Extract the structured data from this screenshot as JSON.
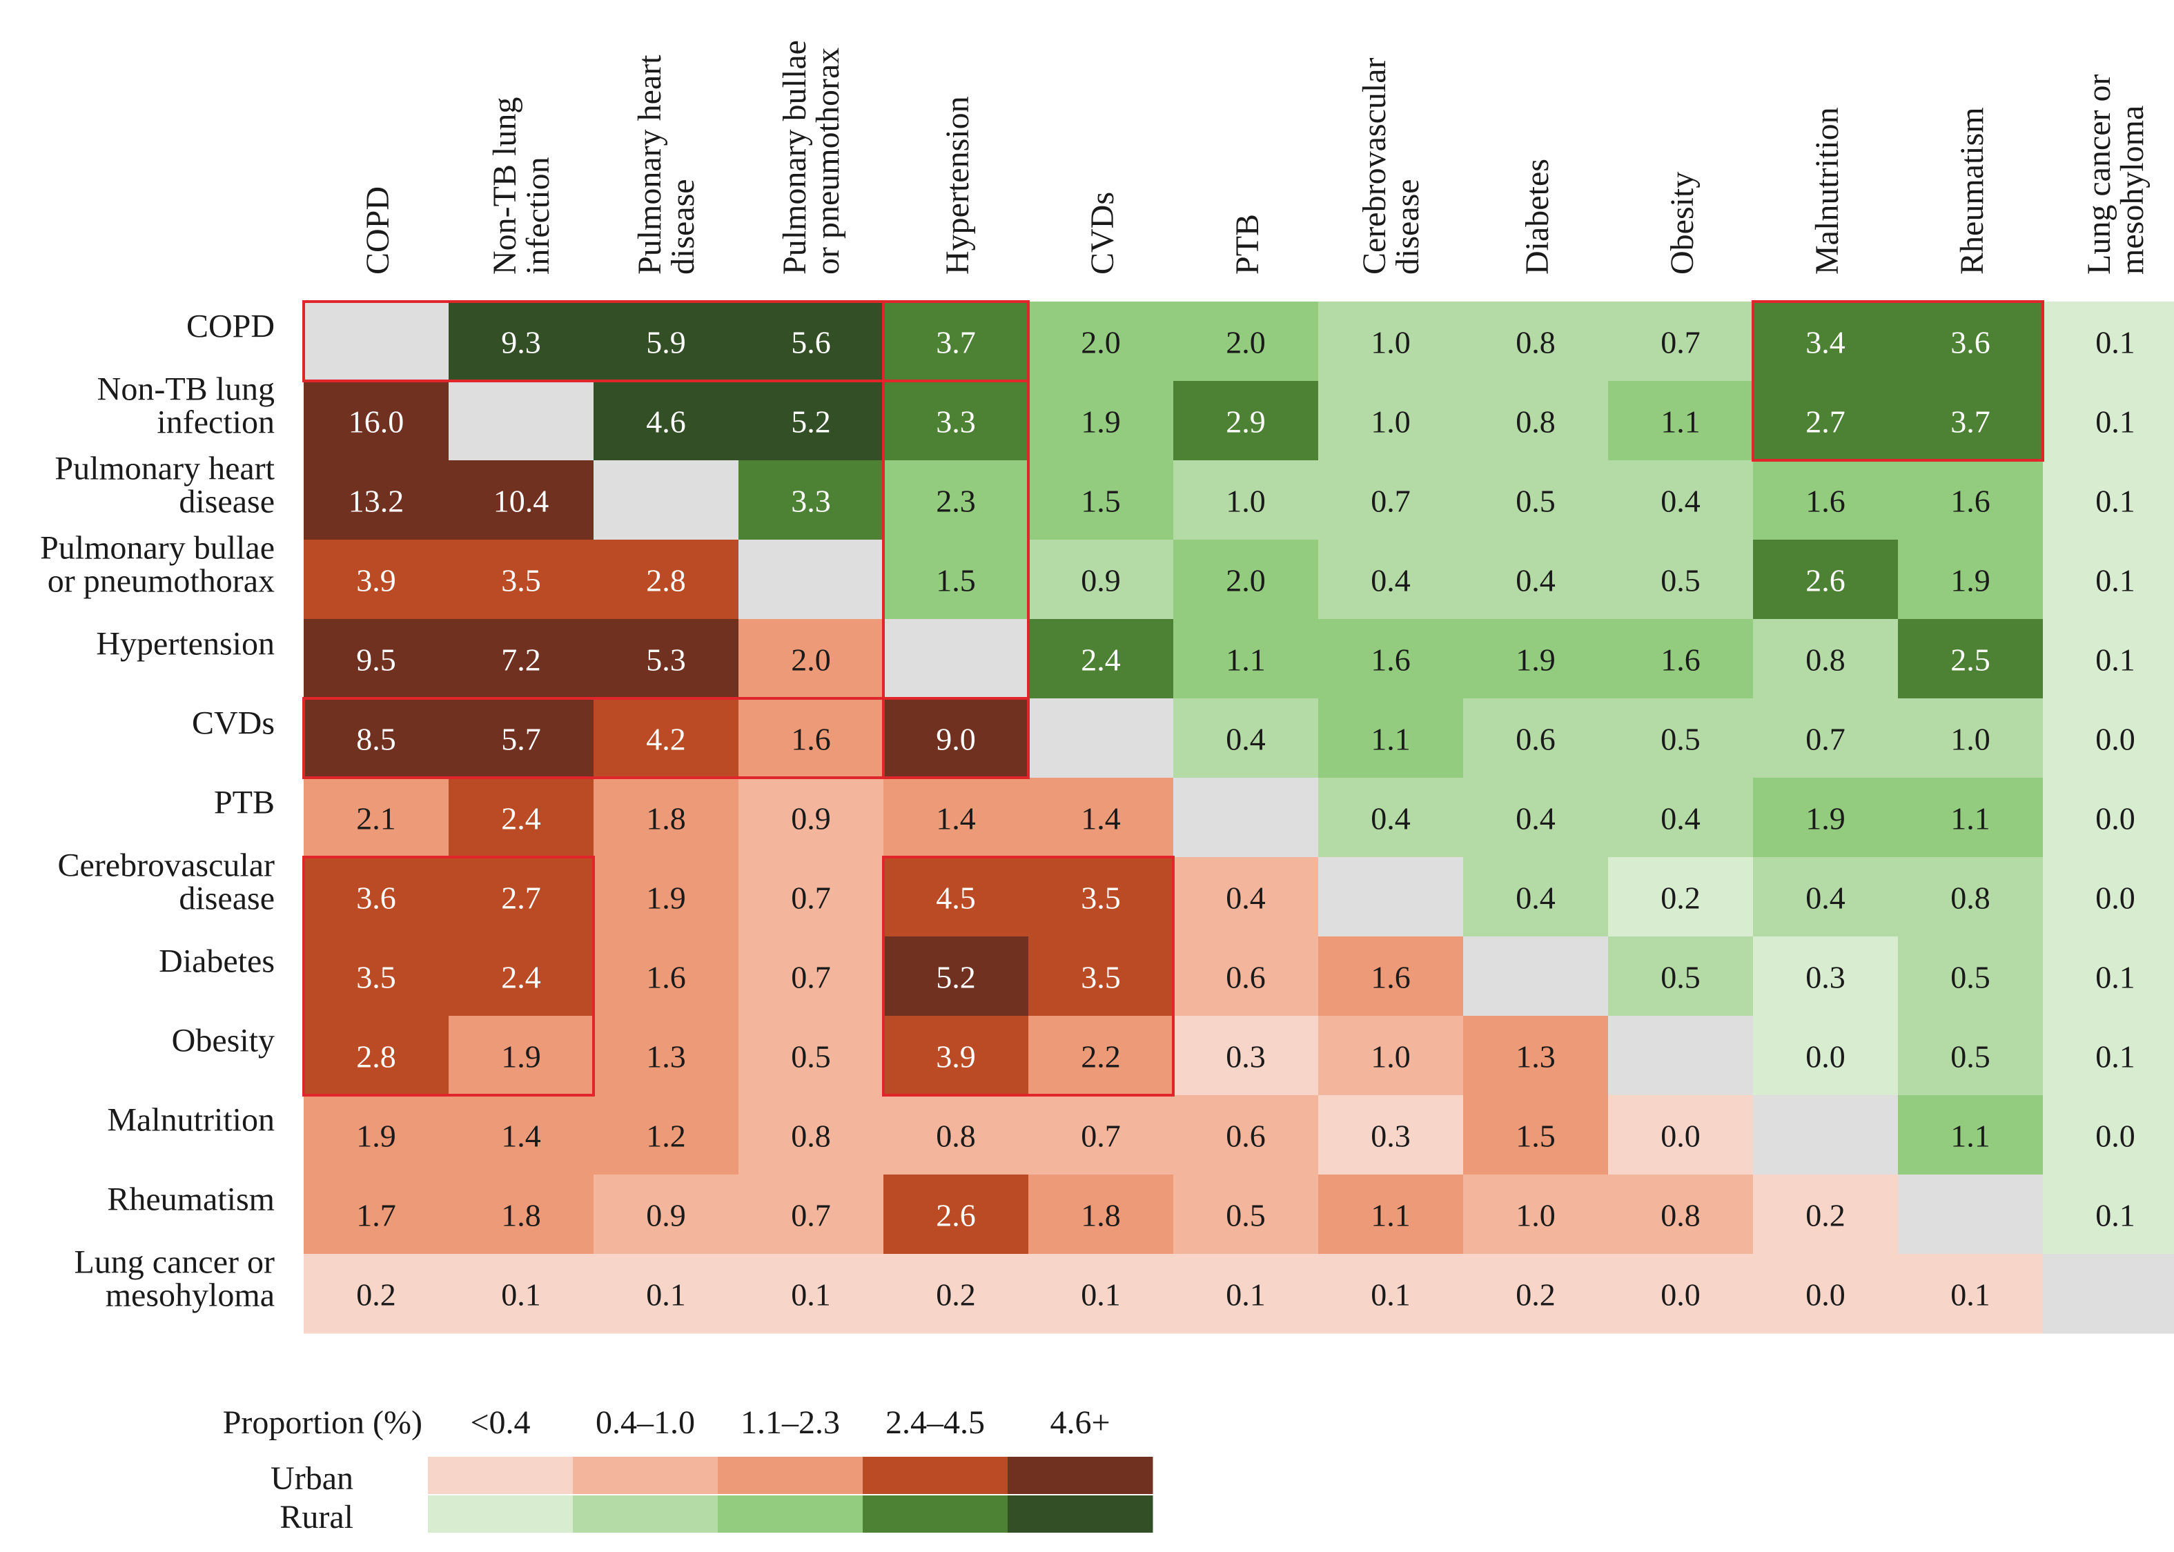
{
  "chart_data": {
    "type": "heatmap",
    "title": "",
    "xlabel": "",
    "ylabel": "",
    "lower_triangle": "Urban",
    "upper_triangle": "Rural",
    "rows": [
      [
        "COPD"
      ],
      [
        "Non-TB lung",
        "infection"
      ],
      [
        "Pulmonary heart",
        "disease"
      ],
      [
        "Pulmonary bullae",
        "or pneumothorax"
      ],
      [
        "Hypertension"
      ],
      [
        "CVDs"
      ],
      [
        "PTB"
      ],
      [
        "Cerebrovascular",
        "disease"
      ],
      [
        "Diabetes"
      ],
      [
        "Obesity"
      ],
      [
        "Malnutrition"
      ],
      [
        "Rheumatism"
      ],
      [
        "Lung cancer or",
        "mesohyloma"
      ]
    ],
    "columns": [
      [
        "COPD"
      ],
      [
        "Non-TB lung",
        "infection"
      ],
      [
        "Pulmonary heart",
        "disease"
      ],
      [
        "Pulmonary bullae",
        "or pneumothorax"
      ],
      [
        "Hypertension"
      ],
      [
        "CVDs"
      ],
      [
        "PTB"
      ],
      [
        "Cerebrovascular",
        "disease"
      ],
      [
        "Diabetes"
      ],
      [
        "Obesity"
      ],
      [
        "Malnutrition"
      ],
      [
        "Rheumatism"
      ],
      [
        "Lung cancer or",
        "mesohyloma"
      ]
    ],
    "values": [
      [
        null,
        "9.3",
        "5.9",
        "5.6",
        "3.7",
        "2.0",
        "2.0",
        "1.0",
        "0.8",
        "0.7",
        "3.4",
        "3.6",
        "0.1"
      ],
      [
        "16.0",
        null,
        "4.6",
        "5.2",
        "3.3",
        "1.9",
        "2.9",
        "1.0",
        "0.8",
        "1.1",
        "2.7",
        "3.7",
        "0.1"
      ],
      [
        "13.2",
        "10.4",
        null,
        "3.3",
        "2.3",
        "1.5",
        "1.0",
        "0.7",
        "0.5",
        "0.4",
        "1.6",
        "1.6",
        "0.1"
      ],
      [
        "3.9",
        "3.5",
        "2.8",
        null,
        "1.5",
        "0.9",
        "2.0",
        "0.4",
        "0.4",
        "0.5",
        "2.6",
        "1.9",
        "0.1"
      ],
      [
        "9.5",
        "7.2",
        "5.3",
        "2.0",
        null,
        "2.4",
        "1.1",
        "1.6",
        "1.9",
        "1.6",
        "0.8",
        "2.5",
        "0.1"
      ],
      [
        "8.5",
        "5.7",
        "4.2",
        "1.6",
        "9.0",
        null,
        "0.4",
        "1.1",
        "0.6",
        "0.5",
        "0.7",
        "1.0",
        "0.0"
      ],
      [
        "2.1",
        "2.4",
        "1.8",
        "0.9",
        "1.4",
        "1.4",
        null,
        "0.4",
        "0.4",
        "0.4",
        "1.9",
        "1.1",
        "0.0"
      ],
      [
        "3.6",
        "2.7",
        "1.9",
        "0.7",
        "4.5",
        "3.5",
        "0.4",
        null,
        "0.4",
        "0.2",
        "0.4",
        "0.8",
        "0.0"
      ],
      [
        "3.5",
        "2.4",
        "1.6",
        "0.7",
        "5.2",
        "3.5",
        "0.6",
        "1.6",
        null,
        "0.5",
        "0.3",
        "0.5",
        "0.1"
      ],
      [
        "2.8",
        "1.9",
        "1.3",
        "0.5",
        "3.9",
        "2.2",
        "0.3",
        "1.0",
        "1.3",
        null,
        "0.0",
        "0.5",
        "0.1"
      ],
      [
        "1.9",
        "1.4",
        "1.2",
        "0.8",
        "0.8",
        "0.7",
        "0.6",
        "0.3",
        "1.5",
        "0.0",
        null,
        "1.1",
        "0.0"
      ],
      [
        "1.7",
        "1.8",
        "0.9",
        "0.7",
        "2.6",
        "1.8",
        "0.5",
        "1.1",
        "1.0",
        "0.8",
        "0.2",
        null,
        "0.1"
      ],
      [
        "0.2",
        "0.1",
        "0.1",
        "0.1",
        "0.2",
        "0.1",
        "0.1",
        "0.1",
        "0.2",
        "0.0",
        "0.0",
        "0.1",
        null
      ]
    ],
    "highlight_boxes": [
      {
        "rows": [
          0,
          0
        ],
        "cols": [
          0,
          4
        ]
      },
      {
        "rows": [
          0,
          5
        ],
        "cols": [
          4,
          4
        ]
      },
      {
        "rows": [
          5,
          5
        ],
        "cols": [
          0,
          4
        ]
      },
      {
        "rows": [
          0,
          1
        ],
        "cols": [
          10,
          11
        ]
      },
      {
        "rows": [
          7,
          9
        ],
        "cols": [
          0,
          1
        ]
      },
      {
        "rows": [
          7,
          9
        ],
        "cols": [
          4,
          5
        ]
      }
    ],
    "legend": {
      "title": "Proportion (%)",
      "bins": [
        "<0.4",
        "0.4–1.0",
        "1.1–2.3",
        "2.4–4.5",
        "4.6+"
      ],
      "thresholds": [
        0.4,
        1.1,
        2.4,
        4.6
      ],
      "rows": [
        {
          "name": "Urban",
          "colors": [
            "#f8d5c9",
            "#f3b59b",
            "#ec9a77",
            "#ba4b25",
            "#703121"
          ]
        },
        {
          "name": "Rural",
          "colors": [
            "#d8ecd0",
            "#b4dba5",
            "#94cc7f",
            "#4d8235",
            "#324f26"
          ]
        }
      ]
    },
    "colors": {
      "diagonal": "#dedede",
      "highlight": "#e0262b"
    }
  }
}
